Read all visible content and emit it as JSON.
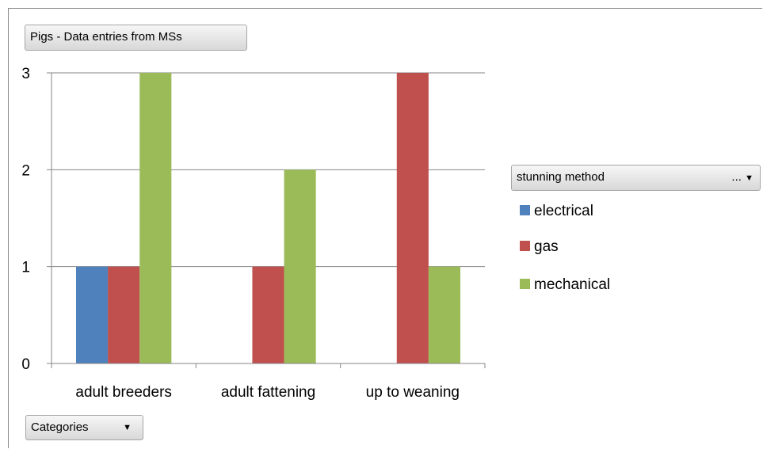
{
  "buttons": {
    "title_pill": "Pigs - Data entries from MSs",
    "legend_pill": "stunning method",
    "legend_menu": "...",
    "dropdown_arrow": "▼",
    "categories_pill": "Categories"
  },
  "chart_data": {
    "type": "bar",
    "categories": [
      "adult breeders",
      "adult fattening",
      "up to weaning"
    ],
    "series": [
      {
        "name": "electrical",
        "color": "#4f81bd",
        "values": [
          1,
          0,
          0
        ]
      },
      {
        "name": "gas",
        "color": "#c0504d",
        "values": [
          1,
          1,
          3
        ]
      },
      {
        "name": "mechanical",
        "color": "#9bbb59",
        "values": [
          3,
          2,
          1
        ]
      }
    ],
    "ylim": [
      0,
      3
    ],
    "yticks": [
      0,
      1,
      2,
      3
    ],
    "grid": true,
    "legend_position": "right"
  }
}
